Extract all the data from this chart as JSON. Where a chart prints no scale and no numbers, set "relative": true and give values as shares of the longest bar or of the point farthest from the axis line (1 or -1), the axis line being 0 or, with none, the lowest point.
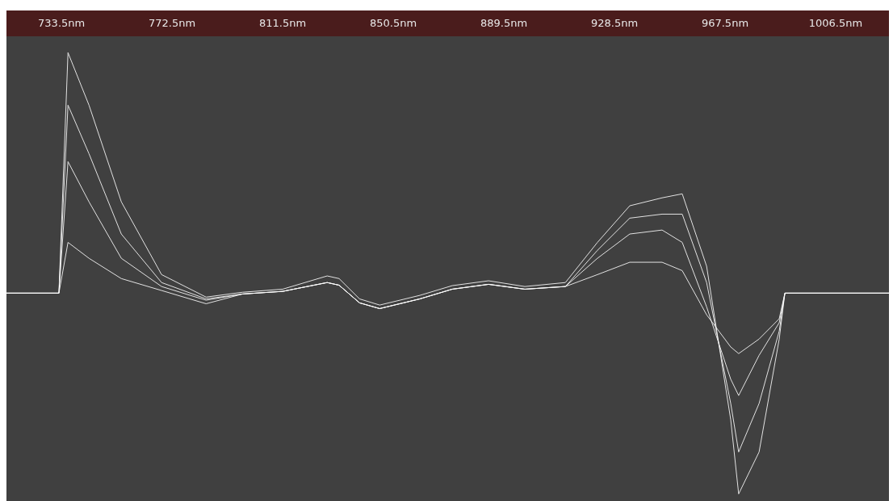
{
  "chart_data": {
    "type": "line",
    "relative": true,
    "grid": false,
    "marker": "none",
    "line_style": "solid",
    "x": [
      714.1,
      732.6,
      735.8,
      743.2,
      754.6,
      768.8,
      784.5,
      797.3,
      811.5,
      827.2,
      831.4,
      838.6,
      845.7,
      859.9,
      871.3,
      884.1,
      896.9,
      911.2,
      922.5,
      933.9,
      945.3,
      952.4,
      961.0,
      969.5,
      972.3,
      979.5,
      986.6,
      988.6,
      1025.3
    ],
    "xlim": [
      714.1,
      1025.3
    ],
    "xticks": [
      {
        "value": 733.5,
        "label": "733.5nm"
      },
      {
        "value": 772.5,
        "label": "772.5nm"
      },
      {
        "value": 811.5,
        "label": "811.5nm"
      },
      {
        "value": 850.5,
        "label": "850.5nm"
      },
      {
        "value": 889.5,
        "label": "889.5nm"
      },
      {
        "value": 928.5,
        "label": "928.5nm"
      },
      {
        "value": 967.5,
        "label": "967.5nm"
      },
      {
        "value": 1006.5,
        "label": "1006.5nm"
      }
    ],
    "series": [
      {
        "color": "#ffffff",
        "values": [
          0.455,
          0.455,
          1.0,
          0.881,
          0.662,
          0.497,
          0.446,
          0.457,
          0.464,
          0.494,
          0.488,
          0.442,
          0.428,
          0.45,
          0.472,
          0.483,
          0.47,
          0.479,
          0.57,
          0.653,
          0.671,
          0.68,
          0.516,
          0.168,
          0.0,
          0.095,
          0.351,
          0.455,
          0.455
        ]
      },
      {
        "color": "#ffffff",
        "values": [
          0.455,
          0.455,
          0.881,
          0.771,
          0.589,
          0.479,
          0.442,
          0.453,
          0.459,
          0.479,
          0.473,
          0.433,
          0.42,
          0.442,
          0.464,
          0.475,
          0.464,
          0.47,
          0.552,
          0.625,
          0.634,
          0.634,
          0.479,
          0.205,
          0.095,
          0.205,
          0.369,
          0.455,
          0.455
        ]
      },
      {
        "color": "#ffffff",
        "values": [
          0.455,
          0.455,
          0.753,
          0.662,
          0.534,
          0.47,
          0.439,
          0.453,
          0.459,
          0.479,
          0.473,
          0.433,
          0.42,
          0.442,
          0.464,
          0.475,
          0.464,
          0.47,
          0.534,
          0.589,
          0.598,
          0.57,
          0.424,
          0.26,
          0.223,
          0.314,
          0.388,
          0.455,
          0.455
        ]
      },
      {
        "color": "#ffffff",
        "values": [
          0.455,
          0.455,
          0.57,
          0.534,
          0.488,
          0.461,
          0.431,
          0.453,
          0.459,
          0.479,
          0.473,
          0.433,
          0.42,
          0.442,
          0.464,
          0.475,
          0.464,
          0.47,
          0.497,
          0.525,
          0.525,
          0.506,
          0.406,
          0.333,
          0.318,
          0.351,
          0.397,
          0.455,
          0.455
        ]
      }
    ]
  }
}
